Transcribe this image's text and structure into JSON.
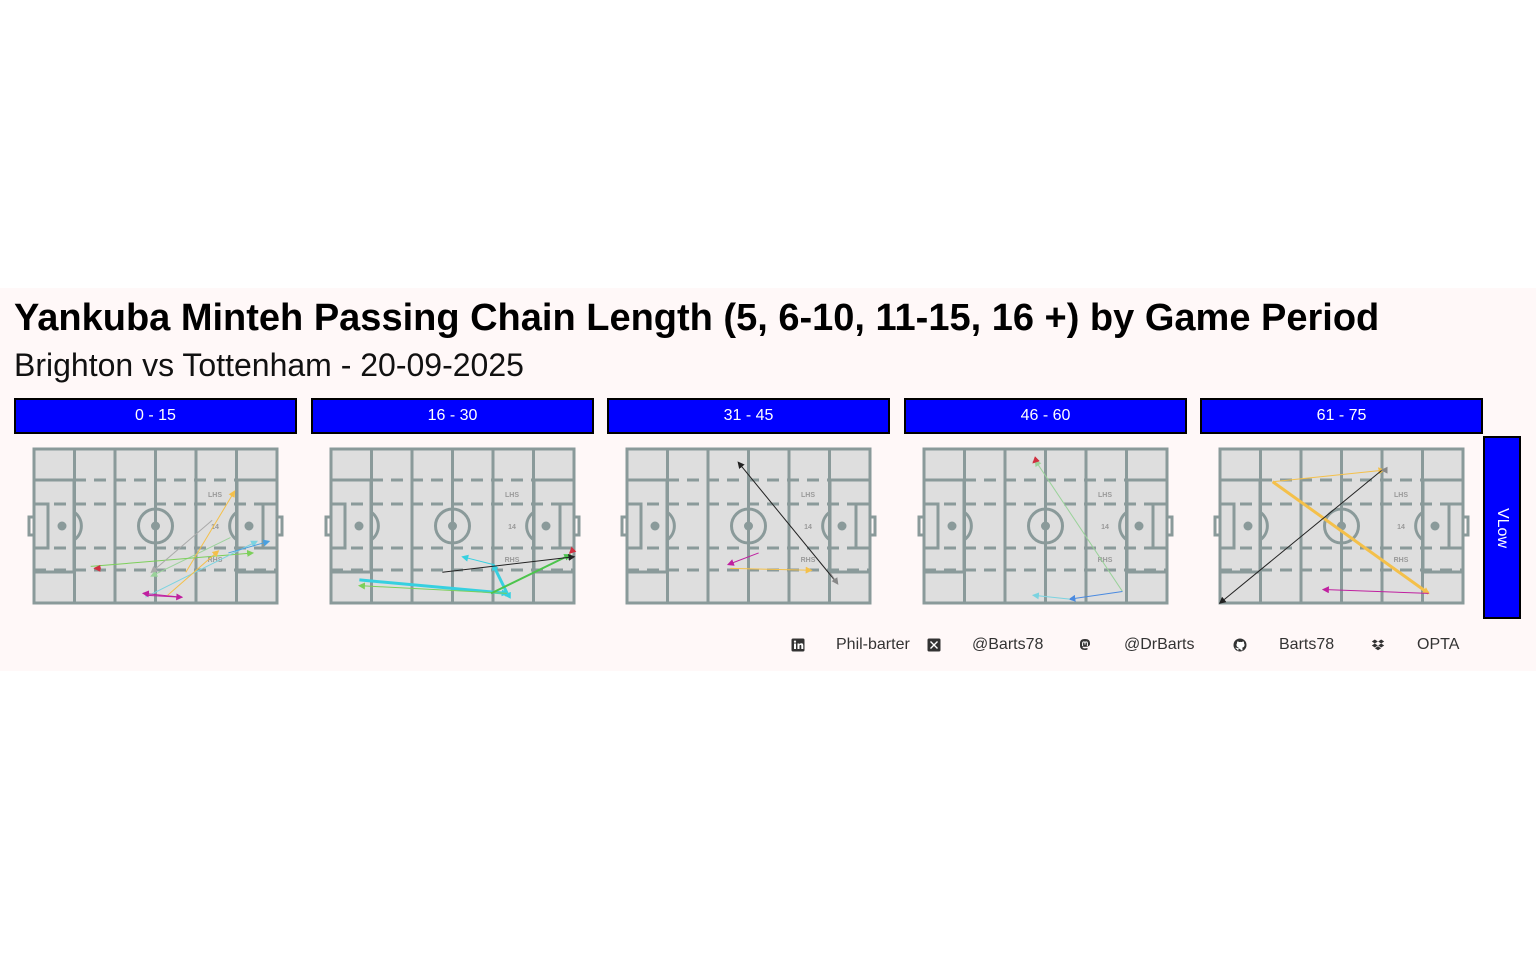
{
  "title": "Yankuba Minteh Passing Chain Length (5, 6-10, 11-15, 16 +) by Game Period",
  "subtitle": "Brighton vs Tottenham - 20-09-2025",
  "row_label": "VLow",
  "pitch_labels": {
    "lhs": "LHS",
    "rhs": "RHS",
    "centre": "14"
  },
  "caption": [
    {
      "icon": "linkedin-icon",
      "text": "Phil-barter"
    },
    {
      "icon": "x-twitter-icon",
      "text": "@Barts78"
    },
    {
      "icon": "mastodon-icon",
      "text": "@DrBarts"
    },
    {
      "icon": "github-icon",
      "text": "Barts78"
    },
    {
      "icon": "dropbox-icon",
      "text": "OPTA"
    }
  ],
  "colors": {
    "strip": "#0000ff",
    "pitch_fill": "#dedede",
    "pitch_line": "#8a9a9a",
    "background": "#fff8f8"
  },
  "chart_data": {
    "type": "pass-map",
    "pitch_x_range": [
      0,
      120
    ],
    "pitch_y_range": [
      0,
      80
    ],
    "panels": [
      {
        "label": "0 - 15",
        "passes": [
          {
            "x": [
              97,
              58
            ],
            "y": [
              34,
              14
            ],
            "color": "#9ad29a",
            "width": 1
          },
          {
            "x": [
              75,
              99
            ],
            "y": [
              16,
              58
            ],
            "color": "#f4c04a",
            "width": 1
          },
          {
            "x": [
              28,
              108
            ],
            "y": [
              19,
              26
            ],
            "color": "#7ccf5a",
            "width": 1
          },
          {
            "x": [
              55,
              110
            ],
            "y": [
              3,
              32
            ],
            "color": "#7bd3e0",
            "width": 1
          },
          {
            "x": [
              55,
              73
            ],
            "y": [
              4,
              3
            ],
            "color": "#c020a0",
            "width": 1
          },
          {
            "x": [
              73,
              54
            ],
            "y": [
              3,
              5
            ],
            "color": "#c020a0",
            "width": 1
          },
          {
            "x": [
              66,
              91
            ],
            "y": [
              4,
              27
            ],
            "color": "#f4c04a",
            "width": 1
          },
          {
            "x": [
              88,
              58
            ],
            "y": [
              43,
              16
            ],
            "color": "#aaaaaa",
            "width": 1
          },
          {
            "x": [
              96,
              116
            ],
            "y": [
              26,
              32
            ],
            "color": "#4aa0e0",
            "width": 1
          },
          {
            "x": [
              33,
              30
            ],
            "y": [
              18,
              18
            ],
            "color": "#d03040",
            "width": 2
          }
        ]
      },
      {
        "label": "16 - 30",
        "passes": [
          {
            "x": [
              14,
              87
            ],
            "y": [
              12,
              5
            ],
            "color": "#36d0e0",
            "width": 3
          },
          {
            "x": [
              87,
              80
            ],
            "y": [
              5,
              20
            ],
            "color": "#36d0e0",
            "width": 3
          },
          {
            "x": [
              80,
              65
            ],
            "y": [
              20,
              24
            ],
            "color": "#36d0e0",
            "width": 1
          },
          {
            "x": [
              87,
              14
            ],
            "y": [
              5,
              9
            ],
            "color": "#7ccf5a",
            "width": 1
          },
          {
            "x": [
              79,
              118
            ],
            "y": [
              5,
              25
            ],
            "color": "#4cc44c",
            "width": 2
          },
          {
            "x": [
              55,
              120
            ],
            "y": [
              16,
              24
            ],
            "color": "#222222",
            "width": 1
          },
          {
            "x": [
              87,
              86
            ],
            "y": [
              4,
              4
            ],
            "color": "#36d0e0",
            "width": 2
          },
          {
            "x": [
              119,
              118
            ],
            "y": [
              27,
              26
            ],
            "color": "#d03040",
            "width": 2
          }
        ]
      },
      {
        "label": "31 - 45",
        "passes": [
          {
            "x": [
              104,
              55
            ],
            "y": [
              10,
              73
            ],
            "color": "#222222",
            "width": 1
          },
          {
            "x": [
              51,
              91
            ],
            "y": [
              18,
              17
            ],
            "color": "#f4c04a",
            "width": 1
          },
          {
            "x": [
              65,
              50
            ],
            "y": [
              26,
              20
            ],
            "color": "#c020a0",
            "width": 1
          },
          {
            "x": [
              100,
              104
            ],
            "y": [
              16,
              10
            ],
            "color": "#888888",
            "width": 1
          }
        ]
      },
      {
        "label": "46 - 60",
        "passes": [
          {
            "x": [
              98,
              55
            ],
            "y": [
              6,
              74
            ],
            "color": "#9ad29a",
            "width": 1
          },
          {
            "x": [
              98,
              72
            ],
            "y": [
              6,
              2
            ],
            "color": "#4a8ae0",
            "width": 1
          },
          {
            "x": [
              72,
              54
            ],
            "y": [
              2,
              4
            ],
            "color": "#7bd3e0",
            "width": 1
          },
          {
            "x": [
              55,
              54
            ],
            "y": [
              74,
              73
            ],
            "color": "#d03040",
            "width": 2
          }
        ]
      },
      {
        "label": "61 - 75",
        "passes": [
          {
            "x": [
              26,
              103
            ],
            "y": [
              63,
              5
            ],
            "color": "#f4c04a",
            "width": 3
          },
          {
            "x": [
              26,
              81
            ],
            "y": [
              63,
              69
            ],
            "color": "#f4c04a",
            "width": 1
          },
          {
            "x": [
              80,
              0
            ],
            "y": [
              69,
              0
            ],
            "color": "#222222",
            "width": 1
          },
          {
            "x": [
              103,
              51
            ],
            "y": [
              5,
              7
            ],
            "color": "#c020a0",
            "width": 1
          },
          {
            "x": [
              81,
              80
            ],
            "y": [
              69,
              69
            ],
            "color": "#888888",
            "width": 2
          }
        ]
      }
    ]
  }
}
